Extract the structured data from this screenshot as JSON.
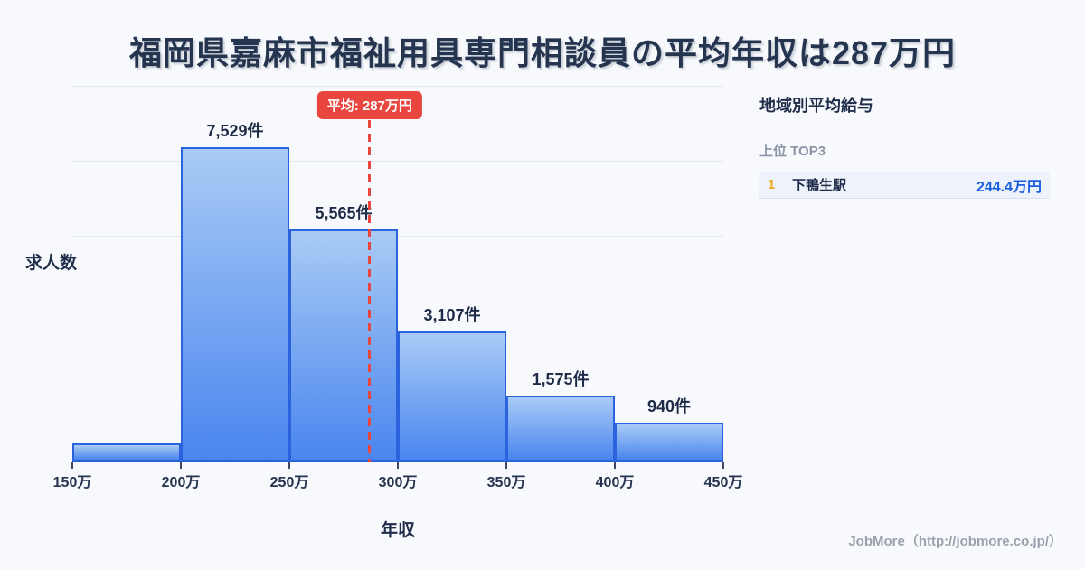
{
  "title": "福岡県嘉麻市福祉用具専門相談員の平均年収は287万円",
  "chart_data": {
    "type": "bar",
    "title": "福岡県嘉麻市福祉用具専門相談員の平均年収は287万円",
    "xlabel": "年収",
    "ylabel": "求人数",
    "x_ticks": [
      "150万",
      "200万",
      "250万",
      "300万",
      "350万",
      "400万",
      "450万"
    ],
    "bin_edges_man": [
      150,
      200,
      250,
      300,
      350,
      400,
      450
    ],
    "values": [
      430,
      7529,
      5565,
      3107,
      1575,
      940
    ],
    "bar_labels": [
      "",
      "7,529件",
      "5,565件",
      "3,107件",
      "1,575件",
      "940件"
    ],
    "ylim": [
      0,
      9000
    ],
    "grid": true,
    "grid_divisions": 5,
    "average": {
      "value_man": 287,
      "label": "平均: 287万円"
    }
  },
  "sidebar": {
    "title": "地域別平均給与",
    "subtitle": "上位 TOP3",
    "rankings": [
      {
        "rank": "1",
        "name": "下鴨生駅",
        "value": "244.4万円"
      }
    ]
  },
  "footer": {
    "credit": "JobMore（http://jobmore.co.jp/）"
  },
  "colors": {
    "background": "#f7f9fc",
    "title_text": "#25344f",
    "bar_fill_top": "#a9cbf5",
    "bar_fill_bottom": "#4a86ef",
    "bar_border": "#2a63dd",
    "average_red": "#e8463f",
    "rank_amber": "#f0a820",
    "value_blue": "#1a5fe0",
    "muted_gray": "#8b95a7",
    "gridline": "#e4e8f0"
  }
}
